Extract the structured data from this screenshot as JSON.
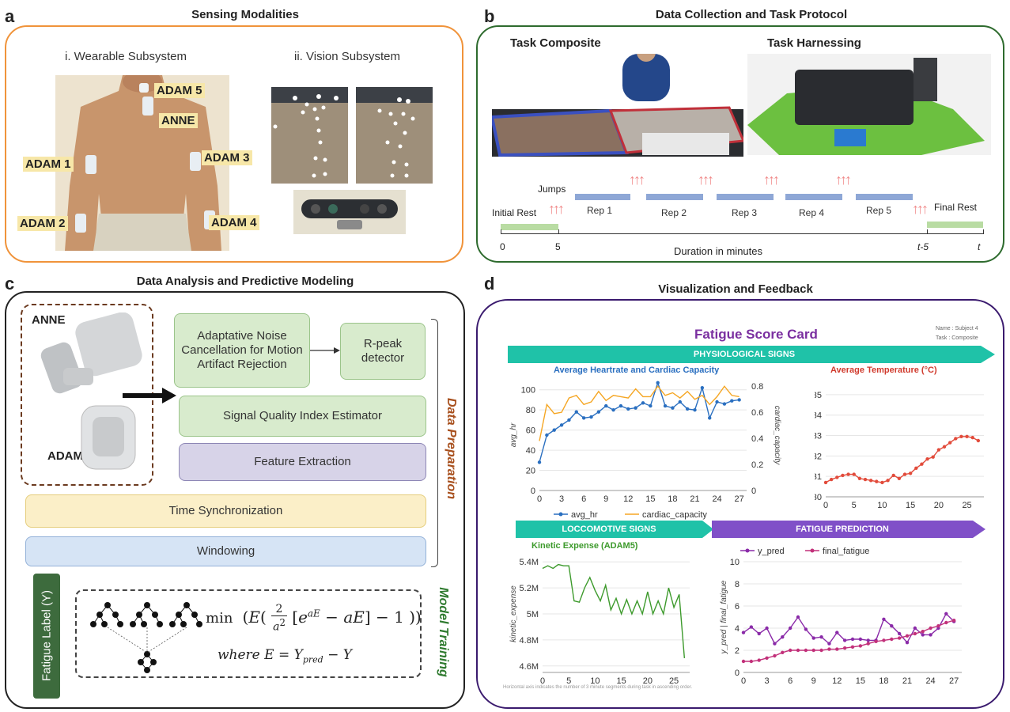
{
  "panel_a": {
    "letter": "a",
    "title": "Sensing Modalities",
    "sub1": "i. Wearable Subsystem",
    "sub2": "ii. Vision Subsystem",
    "sensors": [
      "ADAM 5",
      "ANNE",
      "ADAM 1",
      "ADAM 3",
      "ADAM 2",
      "ADAM 4"
    ]
  },
  "panel_b": {
    "letter": "b",
    "title": "Data Collection and Task Protocol",
    "task1": "Task Composite",
    "task2": "Task Harnessing",
    "jumps": "Jumps",
    "initial_rest": "Initial Rest",
    "final_rest": "Final Rest",
    "reps": [
      "Rep 1",
      "Rep 2",
      "Rep 3",
      "Rep 4",
      "Rep 5"
    ],
    "ticks": [
      "0",
      "5",
      "t-5",
      "t"
    ],
    "axis_label": "Duration in minutes",
    "arrow_glyph": "↑↑↑"
  },
  "panel_c": {
    "letter": "c",
    "title": "Data Analysis and Predictive Modeling",
    "device1": "ANNE",
    "device2": "ADAM",
    "box_anc": "Adaptative Noise Cancellation for Motion Artifact Rejection",
    "box_rpeak": "R-peak detector",
    "box_sqi": "Signal Quality Index Estimator",
    "box_feature": "Feature Extraction",
    "box_time": "Time Synchronization",
    "box_window": "Windowing",
    "side_prep": "Data Preparation",
    "side_train": "Model Training",
    "fatigue_label": "Fatigue Label (Y)",
    "formula_main": "min ( E ( 2 / a² [ e^(aE) − aE ] − 1 ) )",
    "formula_min": "min",
    "formula_where": "where E = Y",
    "formula_sub": "pred",
    "formula_rest": " − Y"
  },
  "panel_d": {
    "letter": "d",
    "title": "Visualization and Feedback",
    "card_title": "Fatigue Score Card",
    "meta_name": "Name : Subject 4",
    "meta_task": "Task : Composite",
    "hdr_phys": "PHYSIOLOGICAL SIGNS",
    "hdr_loco": "LOCCOMOTIVE SIGNS",
    "hdr_pred": "FATIGUE PREDICTION",
    "footnote": "Horizontal axis indicates the number of 3 minute segments during task in ascending order.",
    "colors": {
      "teal": "#1fc2a8",
      "purple": "#8050c8",
      "blue": "#2a6fc0",
      "orange": "#f5a623",
      "red": "#e24b3b",
      "green": "#3d9a2c",
      "magenta": "#c2307a",
      "violet": "#8a2aa8"
    }
  },
  "chart_data": [
    {
      "type": "line",
      "title": "Average Heartrate and Cardiac Capacity",
      "xlabel": "",
      "ylabel": "avg_hr",
      "y2label": "cardiac_capacity",
      "xlim": [
        0,
        28
      ],
      "ylim": [
        0,
        110
      ],
      "y2lim": [
        0,
        0.85
      ],
      "xticks": [
        0,
        3,
        6,
        9,
        12,
        15,
        18,
        21,
        24,
        27
      ],
      "yticks": [
        0,
        20,
        40,
        60,
        80,
        100
      ],
      "y2ticks": [
        0,
        0.2,
        0.4,
        0.6,
        0.8
      ],
      "y2tick_labels": [
        "0",
        "0.2",
        "0.4",
        "0.6",
        "0.8"
      ],
      "legend_position": "bottom",
      "x": [
        0,
        1,
        2,
        3,
        4,
        5,
        6,
        7,
        8,
        9,
        10,
        11,
        12,
        13,
        14,
        15,
        16,
        17,
        18,
        19,
        20,
        21,
        22,
        23,
        24,
        25,
        26,
        27
      ],
      "series": [
        {
          "name": "avg_hr",
          "axis": "left",
          "values": [
            28,
            55,
            60,
            65,
            70,
            78,
            72,
            73,
            78,
            84,
            80,
            84,
            81,
            82,
            87,
            84,
            107,
            84,
            82,
            88,
            81,
            80,
            102,
            72,
            88,
            86,
            89,
            90
          ]
        },
        {
          "name": "cardiac_capacity",
          "axis": "right",
          "values": [
            0.38,
            0.66,
            0.59,
            0.6,
            0.71,
            0.73,
            0.66,
            0.68,
            0.76,
            0.69,
            0.73,
            0.72,
            0.71,
            0.78,
            0.72,
            0.72,
            0.8,
            0.73,
            0.75,
            0.71,
            0.76,
            0.7,
            0.73,
            0.66,
            0.72,
            0.8,
            0.73,
            0.72
          ]
        }
      ]
    },
    {
      "type": "line",
      "title": "Average Temperature (°C)",
      "xlabel": "",
      "ylabel": "avg_temp",
      "xlim": [
        0,
        28
      ],
      "ylim": [
        30,
        35.5
      ],
      "xticks": [
        0,
        5,
        10,
        15,
        20,
        25
      ],
      "yticks": [
        30,
        31,
        32,
        33,
        34,
        35
      ],
      "x": [
        0,
        1,
        2,
        3,
        4,
        5,
        6,
        7,
        8,
        9,
        10,
        11,
        12,
        13,
        14,
        15,
        16,
        17,
        18,
        19,
        20,
        21,
        22,
        23,
        24,
        25,
        26,
        27
      ],
      "series": [
        {
          "name": "avg_temp",
          "values": [
            30.7,
            30.85,
            30.95,
            31.05,
            31.1,
            31.1,
            30.9,
            30.85,
            30.8,
            30.75,
            30.7,
            30.8,
            31.05,
            30.9,
            31.1,
            31.15,
            31.4,
            31.6,
            31.85,
            31.95,
            32.3,
            32.45,
            32.65,
            32.85,
            32.95,
            32.95,
            32.9,
            32.75
          ]
        }
      ]
    },
    {
      "type": "line",
      "title": "Kinetic Expense (ADAM5)",
      "xlabel": "",
      "ylabel": "kinetic_expense",
      "xlim": [
        0,
        28
      ],
      "ylim": [
        4.55,
        5.45
      ],
      "xticks": [
        0,
        5,
        10,
        15,
        20,
        25
      ],
      "yticks": [
        4.6,
        4.8,
        5.0,
        5.2,
        5.4
      ],
      "ytick_labels": [
        "4.6M",
        "4.8M",
        "5M",
        "5.2M",
        "5.4M"
      ],
      "x": [
        0,
        1,
        2,
        3,
        4,
        5,
        6,
        7,
        8,
        9,
        10,
        11,
        12,
        13,
        14,
        15,
        16,
        17,
        18,
        19,
        20,
        21,
        22,
        23,
        24,
        25,
        26,
        27
      ],
      "series": [
        {
          "name": "kinetic_expense",
          "values": [
            5.35,
            5.37,
            5.35,
            5.38,
            5.37,
            5.37,
            5.1,
            5.09,
            5.2,
            5.28,
            5.18,
            5.1,
            5.22,
            5.03,
            5.12,
            5.0,
            5.11,
            5.0,
            5.1,
            5.0,
            5.17,
            5.0,
            5.1,
            5.0,
            5.2,
            5.05,
            5.15,
            4.66
          ]
        }
      ]
    },
    {
      "type": "line",
      "title": "",
      "xlabel": "",
      "ylabel": "y_pred | final_fatigue",
      "xlim": [
        0,
        28
      ],
      "ylim": [
        0,
        10
      ],
      "xticks": [
        0,
        3,
        6,
        9,
        12,
        15,
        18,
        21,
        24,
        27
      ],
      "yticks": [
        0,
        2,
        4,
        6,
        8,
        10
      ],
      "legend_position": "top",
      "x": [
        0,
        1,
        2,
        3,
        4,
        5,
        6,
        7,
        8,
        9,
        10,
        11,
        12,
        13,
        14,
        15,
        16,
        17,
        18,
        19,
        20,
        21,
        22,
        23,
        24,
        25,
        26,
        27
      ],
      "series": [
        {
          "name": "y_pred",
          "values": [
            3.6,
            4.1,
            3.5,
            4.0,
            2.6,
            3.2,
            4.0,
            5.0,
            3.9,
            3.1,
            3.2,
            2.6,
            3.6,
            2.9,
            3.0,
            3.0,
            2.9,
            2.9,
            4.8,
            4.2,
            3.5,
            2.7,
            4.0,
            3.4,
            3.4,
            4.0,
            5.3,
            4.6
          ]
        },
        {
          "name": "final_fatigue",
          "values": [
            1.0,
            1.0,
            1.1,
            1.3,
            1.5,
            1.8,
            2.0,
            2.0,
            2.0,
            2.0,
            2.0,
            2.1,
            2.1,
            2.2,
            2.3,
            2.4,
            2.6,
            2.8,
            2.9,
            3.0,
            3.1,
            3.3,
            3.5,
            3.7,
            4.0,
            4.2,
            4.5,
            4.7
          ]
        }
      ]
    }
  ]
}
